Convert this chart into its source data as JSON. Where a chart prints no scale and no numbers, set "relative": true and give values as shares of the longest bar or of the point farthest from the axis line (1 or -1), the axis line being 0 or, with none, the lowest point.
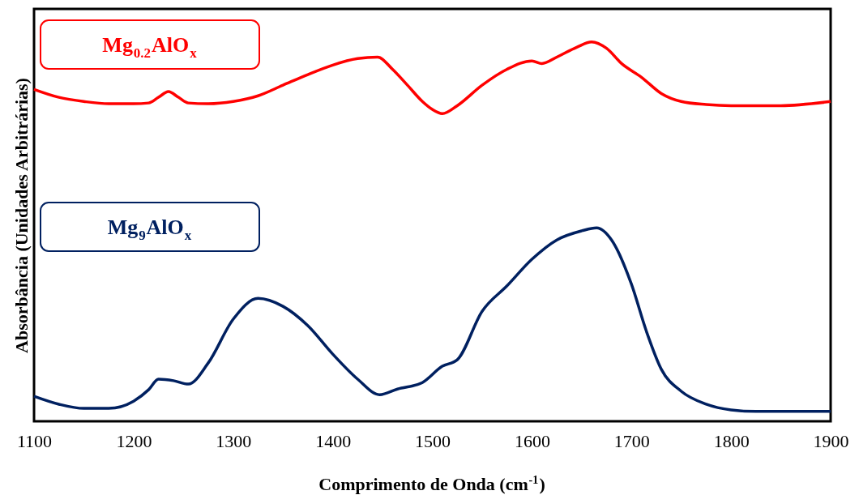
{
  "chart_data": {
    "type": "line",
    "relative": true,
    "xlabel": "Comprimento de Onda (cm$^{-1}$)",
    "ylabel": "Absorbância (Unidades Arbitrárias)",
    "xlim": [
      1100,
      1900
    ],
    "xticks": [
      1100,
      1200,
      1300,
      1400,
      1500,
      1600,
      1700,
      1800,
      1900
    ],
    "grid": false,
    "marker": "none",
    "line_style": "solid",
    "series": [
      {
        "name": "Mg$_{0.2}$AlO$_{x}$",
        "color": "#ff0000",
        "x": [
          1100,
          1125,
          1150,
          1175,
          1200,
          1215,
          1225,
          1235,
          1245,
          1255,
          1275,
          1300,
          1325,
          1350,
          1375,
          1400,
          1425,
          1445,
          1460,
          1475,
          1490,
          1500,
          1510,
          1525,
          1550,
          1575,
          1600,
          1610,
          1625,
          1645,
          1660,
          1675,
          1690,
          1710,
          1730,
          1750,
          1775,
          1800,
          1850,
          1900
        ],
        "values": [
          0.875,
          0.854,
          0.843,
          0.837,
          0.837,
          0.839,
          0.854,
          0.869,
          0.854,
          0.839,
          0.837,
          0.843,
          0.858,
          0.886,
          0.914,
          0.939,
          0.956,
          0.96,
          0.928,
          0.886,
          0.843,
          0.822,
          0.811,
          0.832,
          0.886,
          0.928,
          0.95,
          0.943,
          0.96,
          0.986,
          1.0,
          0.983,
          0.943,
          0.907,
          0.864,
          0.843,
          0.835,
          0.832,
          0.832,
          0.843
        ]
      },
      {
        "name": "Mg$_{9}$AlO$_{x}$",
        "color": "#002060",
        "x": [
          1100,
          1125,
          1150,
          1175,
          1200,
          1215,
          1225,
          1240,
          1255,
          1275,
          1300,
          1325,
          1350,
          1375,
          1400,
          1425,
          1447,
          1465,
          1490,
          1510,
          1525,
          1550,
          1575,
          1600,
          1625,
          1650,
          1665,
          1680,
          1700,
          1715,
          1730,
          1750,
          1775,
          1800,
          1825,
          1900
        ],
        "values": [
          0.066,
          0.045,
          0.034,
          0.034,
          0.053,
          0.083,
          0.111,
          0.107,
          0.098,
          0.154,
          0.269,
          0.324,
          0.303,
          0.252,
          0.177,
          0.111,
          0.07,
          0.085,
          0.102,
          0.145,
          0.162,
          0.29,
          0.357,
          0.427,
          0.478,
          0.502,
          0.51,
          0.478,
          0.361,
          0.237,
          0.137,
          0.079,
          0.045,
          0.03,
          0.026,
          0.026
        ]
      }
    ]
  }
}
